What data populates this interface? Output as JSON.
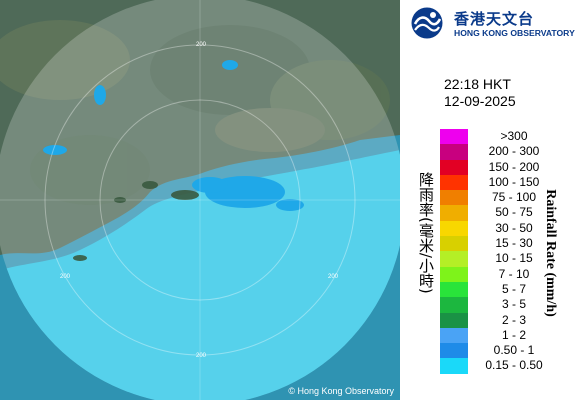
{
  "organization": {
    "name_zh": "香港天文台",
    "name_en": "HONG KONG OBSERVATORY"
  },
  "timestamp": {
    "time": "22:18 HKT",
    "date": "12-09-2025"
  },
  "map": {
    "range_ring_label": "200",
    "copyright": "© Hong Kong Observatory",
    "colors": {
      "sea": "#56c8e2",
      "land": "#5d6f52",
      "radar_range": "#dff6fb",
      "rain_light": "#1fa8e8"
    }
  },
  "legend": {
    "title_zh": "降雨率(毫米/小時)",
    "title_en": "Rainfall Rate (mm/h)",
    "items": [
      {
        "label": ">300",
        "color": "#ee00ee"
      },
      {
        "label": "200 - 300",
        "color": "#c8007f"
      },
      {
        "label": "150 - 200",
        "color": "#e20024"
      },
      {
        "label": "100 - 150",
        "color": "#ff3300"
      },
      {
        "label": "75 - 100",
        "color": "#f07f00"
      },
      {
        "label": "50 - 75",
        "color": "#f0ae00"
      },
      {
        "label": "30 - 50",
        "color": "#f8d700"
      },
      {
        "label": "15 - 30",
        "color": "#d8d000"
      },
      {
        "label": "10 - 15",
        "color": "#b4ef26"
      },
      {
        "label": "7 - 10",
        "color": "#7ef31a"
      },
      {
        "label": "5 - 7",
        "color": "#29e43a"
      },
      {
        "label": "3 - 5",
        "color": "#1cb73f"
      },
      {
        "label": "2 - 3",
        "color": "#1a9245"
      },
      {
        "label": "1 - 2",
        "color": "#4aa3f5"
      },
      {
        "label": "0.50 - 1",
        "color": "#1e8be8"
      },
      {
        "label": "0.15 - 0.50",
        "color": "#1ad9f9"
      }
    ]
  }
}
